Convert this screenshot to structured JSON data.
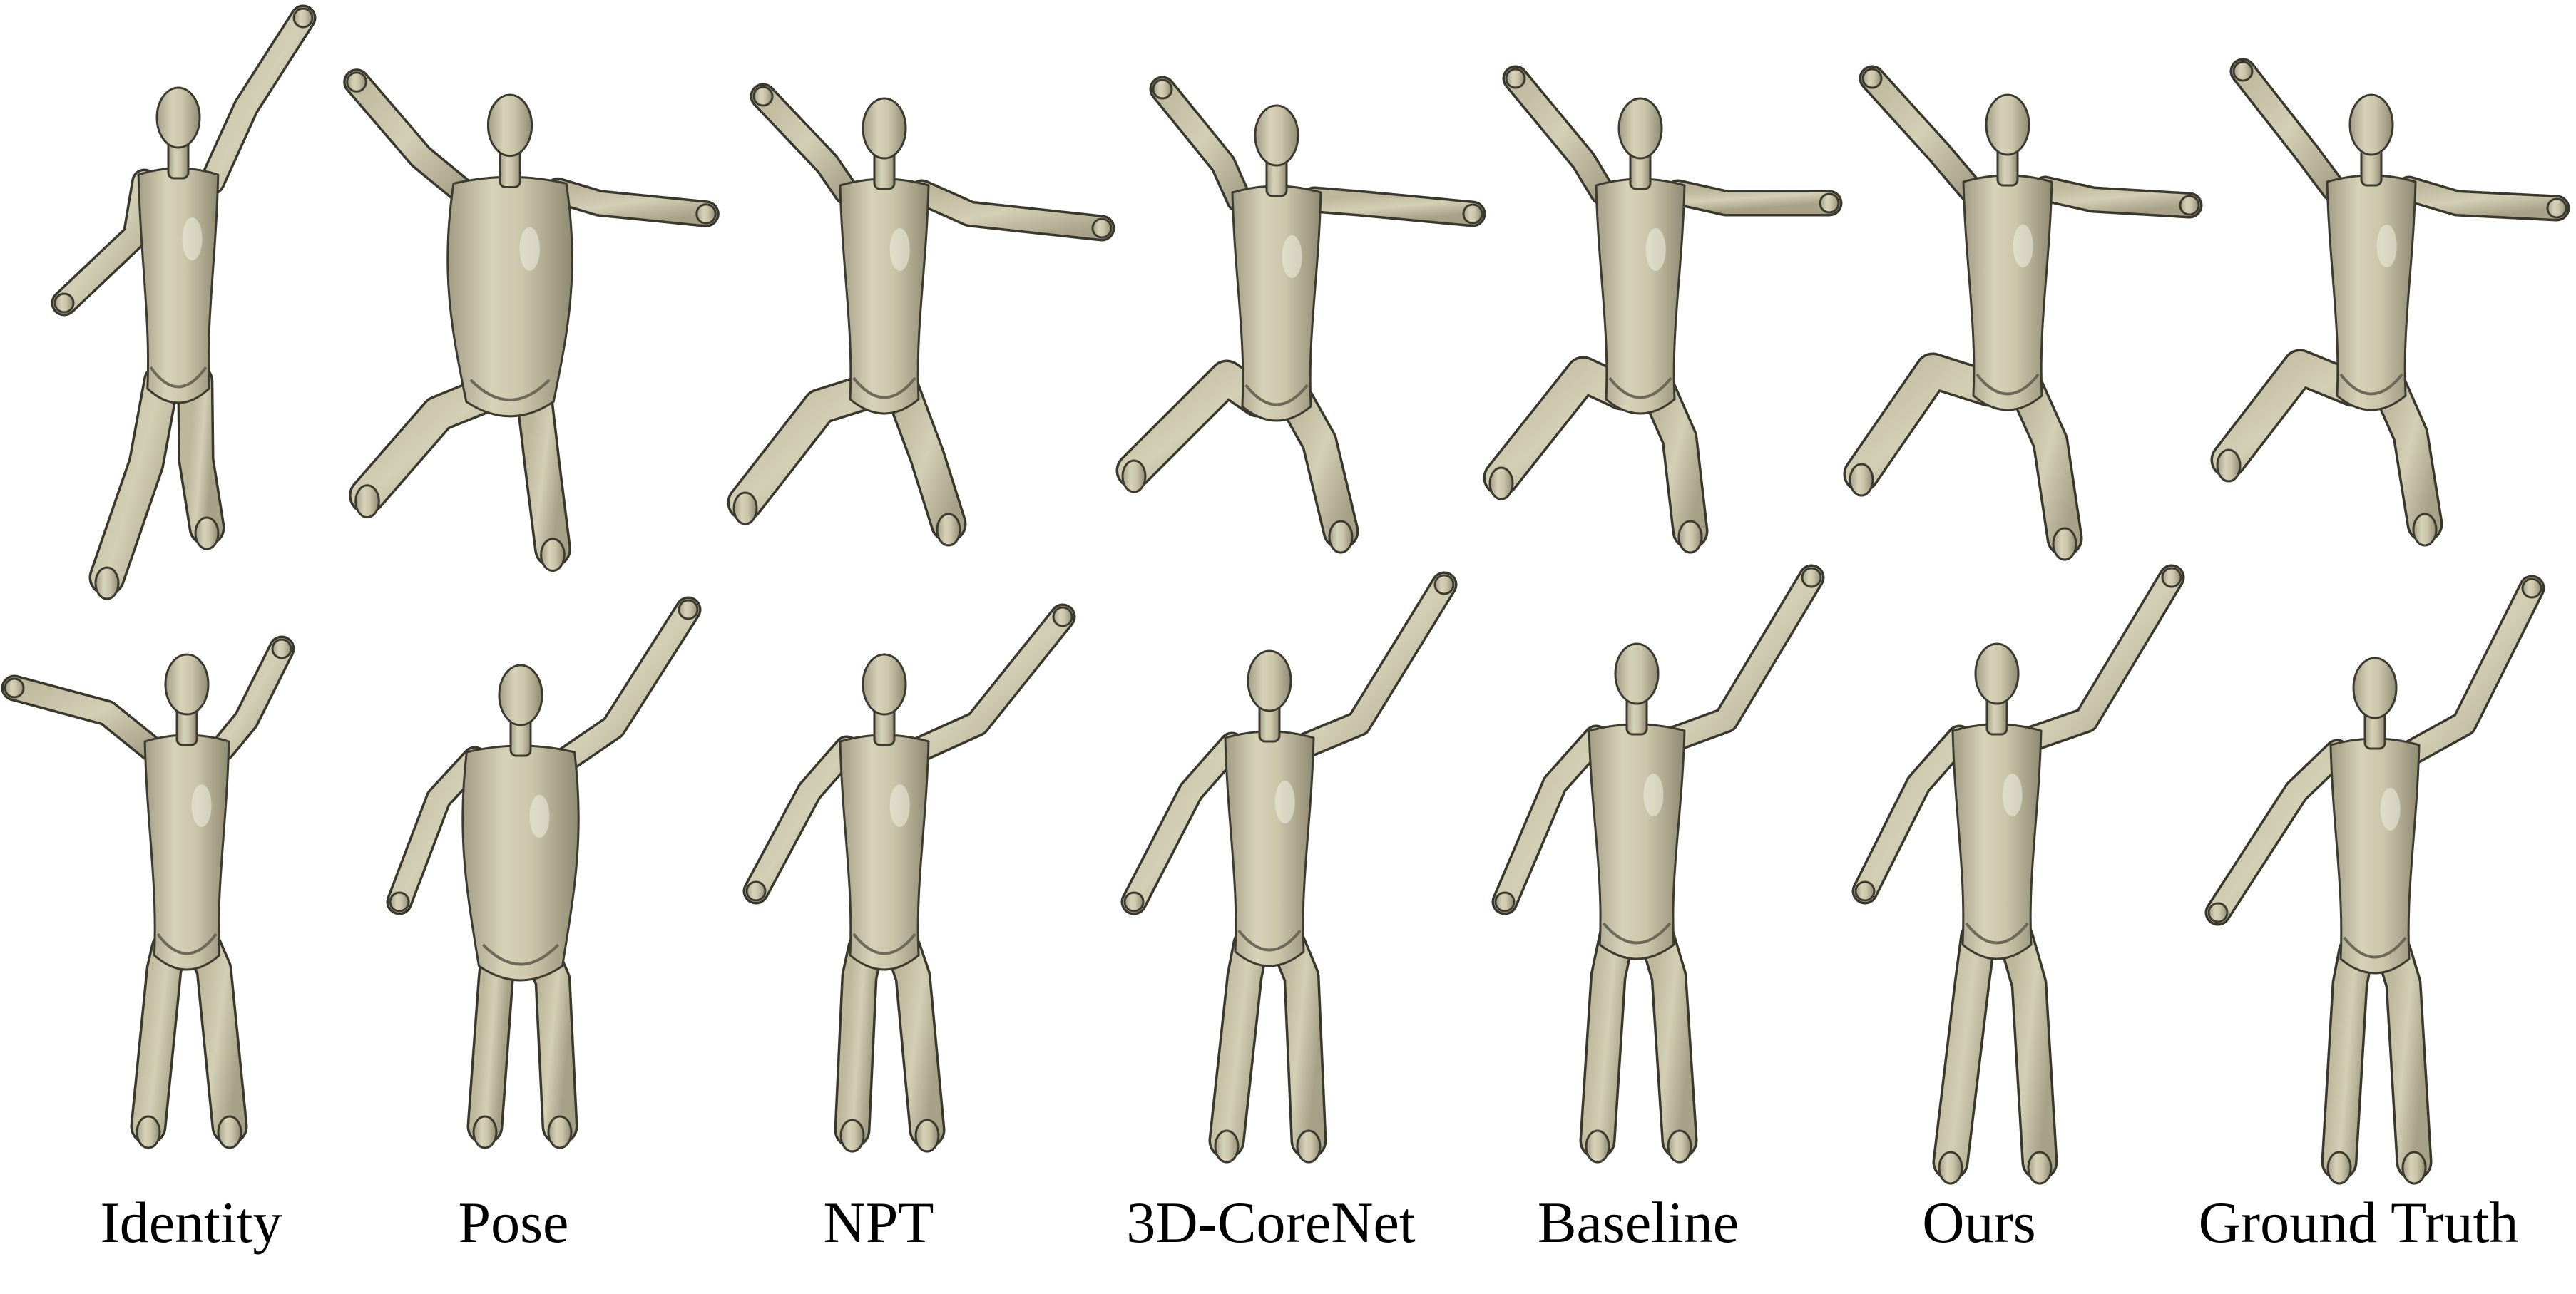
{
  "figure": {
    "columns": [
      {
        "id": "identity",
        "label": "Identity"
      },
      {
        "id": "pose",
        "label": "Pose"
      },
      {
        "id": "npt",
        "label": "NPT"
      },
      {
        "id": "corenet",
        "label": "3D-CoreNet"
      },
      {
        "id": "baseline",
        "label": "Baseline"
      },
      {
        "id": "ours",
        "label": "Ours"
      },
      {
        "id": "ground-truth",
        "label": "Ground Truth"
      }
    ],
    "rows": [
      {
        "id": "row-1",
        "description_name": "leg-raised-pose"
      },
      {
        "id": "row-2",
        "description_name": "arm-raised-pose"
      }
    ],
    "colors": {
      "mesh": "#c8c3a6",
      "mesh_dark": "#8e8a73",
      "outline": "#3d3a30",
      "background": "#ffffff",
      "label": "#000000"
    }
  }
}
